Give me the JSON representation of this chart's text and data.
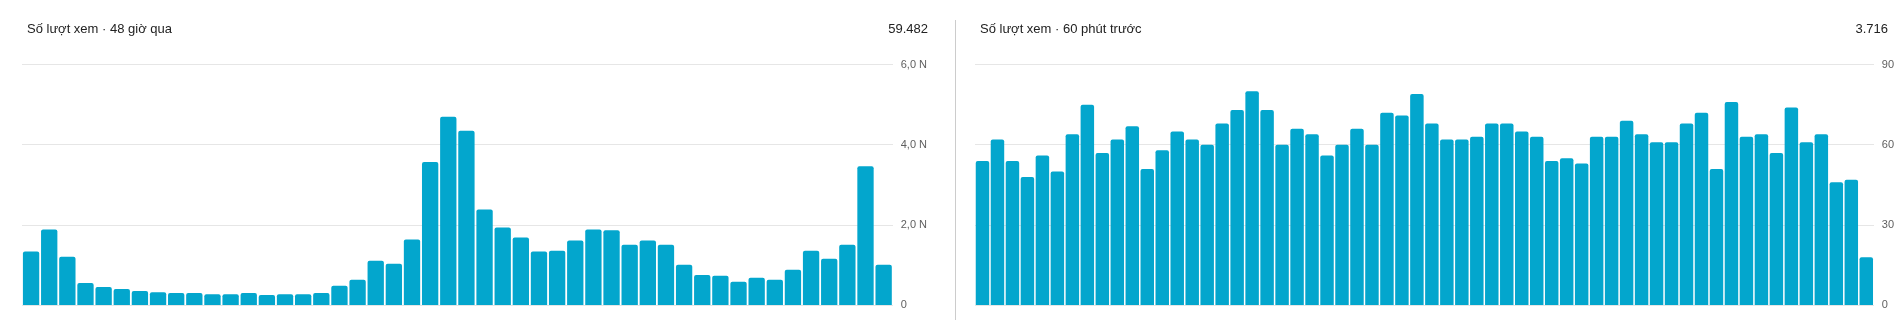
{
  "chart_data": [
    {
      "type": "bar",
      "title": "Số lượt xem · 48 giờ qua",
      "annotations": [
        "59.482"
      ],
      "categories": [
        null,
        null,
        null,
        null,
        null,
        null,
        null,
        null,
        null,
        null,
        null,
        null,
        null,
        null,
        null,
        null,
        null,
        null,
        null,
        null,
        null,
        null,
        null,
        null,
        null,
        null,
        null,
        null,
        null,
        null,
        null,
        null,
        null,
        null,
        null,
        null,
        null,
        null,
        null,
        null,
        null,
        null,
        null,
        null,
        null,
        null,
        null,
        null
      ],
      "values": [
        1.34,
        1.89,
        1.21,
        0.56,
        0.46,
        0.41,
        0.36,
        0.33,
        0.31,
        0.31,
        0.28,
        0.28,
        0.31,
        0.26,
        0.28,
        0.28,
        0.31,
        0.49,
        0.64,
        1.11,
        1.04,
        1.64,
        3.57,
        4.7,
        4.35,
        2.39,
        1.94,
        1.69,
        1.34,
        1.36,
        1.62,
        1.89,
        1.87,
        1.51,
        1.62,
        1.51,
        1.01,
        0.76,
        0.74,
        0.59,
        0.69,
        0.64,
        0.89,
        1.36,
        1.16,
        1.51,
        3.47,
        1.01
      ],
      "color": "#03a6cd",
      "ylim": [
        0,
        6
      ],
      "yticks": [
        0,
        {
          "value": 2,
          "label": "2,0 N"
        },
        {
          "value": 4,
          "label": "4,0 N"
        },
        {
          "value": 6,
          "label": "6,0 N"
        }
      ],
      "grid": "y",
      "tick_labels": "y"
    },
    {
      "type": "bar",
      "title": "Số lượt xem · 60 phút trước",
      "annotations": [
        "3.716"
      ],
      "categories": [
        null,
        null,
        null,
        null,
        null,
        null,
        null,
        null,
        null,
        null,
        null,
        null,
        null,
        null,
        null,
        null,
        null,
        null,
        null,
        null,
        null,
        null,
        null,
        null,
        null,
        null,
        null,
        null,
        null,
        null,
        null,
        null,
        null,
        null,
        null,
        null,
        null,
        null,
        null,
        null,
        null,
        null,
        null,
        null,
        null,
        null,
        null,
        null,
        null,
        null,
        null,
        null,
        null,
        null,
        null,
        null,
        null,
        null,
        null,
        null
      ],
      "values": [
        54,
        62,
        54,
        48,
        56,
        50,
        64,
        75,
        57,
        62,
        67,
        51,
        58,
        65,
        62,
        60,
        68,
        73,
        80,
        73,
        60,
        66,
        64,
        56,
        60,
        66,
        60,
        72,
        71,
        79,
        68,
        62,
        62,
        63,
        68,
        68,
        65,
        63,
        54,
        55,
        53,
        63,
        63,
        69,
        64,
        61,
        61,
        68,
        72,
        51,
        76,
        63,
        64,
        57,
        74,
        61,
        64,
        46,
        47,
        18
      ],
      "color": "#03a6cd",
      "ylim": [
        0,
        90
      ],
      "yticks": [
        0,
        30,
        60,
        90
      ],
      "grid": "y",
      "tick_labels": "y"
    }
  ]
}
